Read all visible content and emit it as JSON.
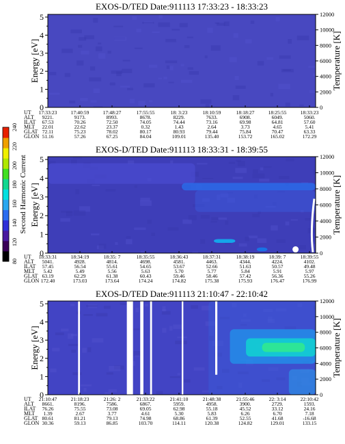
{
  "colorbar": {
    "label": "Second Harmonic Current",
    "ticks": [
      "80",
      "120",
      "140",
      "160",
      "180",
      "200",
      "220",
      "240"
    ],
    "colors": [
      "#000000",
      "#3a0058",
      "#4a1aa0",
      "#3030d8",
      "#2a6cf0",
      "#28a8f0",
      "#00e0e0",
      "#10d890",
      "#40e020",
      "#b0e800",
      "#f0f000",
      "#f0a000",
      "#e82000"
    ]
  },
  "chart_data": [
    {
      "type": "heatmap",
      "title": "EXOS-D/TED  Date:911113  17:33:23 - 18:33:23",
      "ylabel": "Energy [eV]",
      "y2label": "Temperature [K]",
      "ylim": [
        0,
        5.15
      ],
      "y_ticks": [
        0,
        1,
        2,
        3,
        4,
        5
      ],
      "y2lim": [
        0,
        12000
      ],
      "y2_ticks": [
        0,
        2000,
        4000,
        6000,
        8000,
        10000,
        12000
      ],
      "background": "#4848c0",
      "features": [],
      "gaps": [],
      "ephemeris": {
        "labels": [
          "UT",
          "ALT",
          "ILAT",
          "MLT",
          "GLAT",
          "GLON"
        ],
        "columns": [
          [
            "17:33:23",
            "9221.",
            "67.53",
            "22.01",
            "72.11",
            "51.16"
          ],
          [
            "17:40:59",
            "9173.",
            "70.26",
            "22.62",
            "75.23",
            "57.26"
          ],
          [
            "17:48:27",
            "8993.",
            "72.50",
            "23.37",
            "78.02",
            "67.25"
          ],
          [
            "17:55:55",
            "8678.",
            "74.05",
            "0.32",
            "80.17",
            "84.04"
          ],
          [
            "18: 3:23",
            "8229.",
            "74.44",
            "1.43",
            "80.93",
            "109.01"
          ],
          [
            "18:10:59",
            "7633.",
            "73.16",
            "2.64",
            "79.44",
            "135.40"
          ],
          [
            "18:18:27",
            "6908.",
            "69.98",
            "3.73",
            "75.84",
            "153.72"
          ],
          [
            "18:25:55",
            "6049.",
            "64.81",
            "4.65",
            "70.47",
            "165.02"
          ],
          [
            "18:33:23",
            "5060.",
            "57.60",
            "5.41",
            "63.33",
            "172.29"
          ]
        ]
      }
    },
    {
      "type": "heatmap",
      "title": "EXOS-D/TED  Date:911113  18:33:31 - 18:39:55",
      "ylabel": "Energy [eV]",
      "y2label": "Temperature [K]",
      "ylim": [
        0,
        5.15
      ],
      "y_ticks": [
        0,
        1,
        2,
        3,
        4,
        5
      ],
      "y2lim": [
        0,
        12000
      ],
      "y2_ticks": [
        0,
        2000,
        4000,
        6000,
        8000,
        10000,
        12000
      ],
      "background": "#3e3eb8",
      "features": [
        {
          "x0": 0.0,
          "x1": 0.55,
          "y0": 3.7,
          "y1": 4.8,
          "color": "#4a4cd0",
          "opacity": 0.7
        },
        {
          "x0": 0.5,
          "x1": 1.0,
          "y0": 3.35,
          "y1": 3.75,
          "color": "#2a6ae8",
          "opacity": 0.85
        },
        {
          "x0": 0.55,
          "x1": 1.0,
          "y0": 2.2,
          "y1": 3.35,
          "color": "#3a58d8",
          "opacity": 0.55
        },
        {
          "x0": 0.62,
          "x1": 0.7,
          "y0": 0.55,
          "y1": 0.75,
          "color": "#10b0f0",
          "opacity": 0.9
        },
        {
          "x0": 0.78,
          "x1": 0.82,
          "y0": 0.1,
          "y1": 0.3,
          "color": "#1080f0",
          "opacity": 0.8
        }
      ],
      "gaps": [],
      "ephemeris": {
        "labels": [
          "UT",
          "ALT",
          "ILAT",
          "MLT",
          "GLAT",
          "GLON"
        ],
        "columns": [
          [
            "18:33:31",
            "5041.",
            "57.45",
            "5.42",
            "63.19",
            "172.40"
          ],
          [
            "18:34:19",
            "4928.",
            "56.54",
            "5.49",
            "62.29",
            "173.03"
          ],
          [
            "18:35: 7",
            "4814.",
            "55.61",
            "5.56",
            "61.38",
            "173.64"
          ],
          [
            "18:35:55",
            "4698.",
            "54.65",
            "5.63",
            "60.43",
            "174.24"
          ],
          [
            "18:36:43",
            "4581.",
            "53.67",
            "5.70",
            "59.46",
            "174.82"
          ],
          [
            "18:37:31",
            "4463.",
            "52.66",
            "5.77",
            "58.46",
            "175.38"
          ],
          [
            "18:38:19",
            "4344.",
            "51.63",
            "5.84",
            "57.42",
            "175.93"
          ],
          [
            "18:39: 7",
            "4224.",
            "50.57",
            "5.91",
            "56.36",
            "176.47"
          ],
          [
            "18:39:55",
            "4102.",
            "49.48",
            "5.97",
            "55.26",
            "176.99"
          ]
        ]
      }
    },
    {
      "type": "heatmap",
      "title": "EXOS-D/TED  Date:911113  21:10:47 - 22:10:42",
      "ylabel": "Energy [eV]",
      "y2label": "Temperature [K]",
      "ylim": [
        0,
        5.15
      ],
      "y_ticks": [
        0,
        1,
        2,
        3,
        4,
        5
      ],
      "y2lim": [
        0,
        12000
      ],
      "y2_ticks": [
        0,
        2000,
        4000,
        6000,
        8000,
        10000,
        12000
      ],
      "background": "#4244c4",
      "features": [
        {
          "x0": 0.6,
          "x1": 1.0,
          "y0": 0.0,
          "y1": 5.15,
          "color": "#3a5ad8",
          "opacity": 0.5
        },
        {
          "x0": 0.68,
          "x1": 1.0,
          "y0": 1.7,
          "y1": 3.6,
          "color": "#1ca0f0",
          "opacity": 0.65
        },
        {
          "x0": 0.74,
          "x1": 1.0,
          "y0": 2.1,
          "y1": 3.1,
          "color": "#10d8d0",
          "opacity": 0.8
        },
        {
          "x0": 0.8,
          "x1": 0.96,
          "y0": 2.35,
          "y1": 2.85,
          "color": "#30e890",
          "opacity": 0.9
        },
        {
          "x0": 0.9,
          "x1": 1.0,
          "y0": 0.0,
          "y1": 1.4,
          "color": "#2c9ae8",
          "opacity": 0.6
        }
      ],
      "gaps": [
        {
          "x0": 0.113,
          "x1": 0.12
        },
        {
          "x0": 0.295,
          "x1": 0.318
        },
        {
          "x0": 0.345,
          "x1": 0.357
        },
        {
          "x0": 0.382,
          "x1": 0.389
        },
        {
          "x0": 0.5,
          "x1": 0.506
        },
        {
          "x0": 0.625,
          "x1": 0.633,
          "y0": 1.1
        }
      ],
      "ephemeris": {
        "labels": [
          "UT",
          "ALT",
          "ILAT",
          "MLT",
          "GLAT",
          "GLON"
        ],
        "columns": [
          [
            "21:10:47",
            "8661.",
            "76.26",
            "1.39",
            "80.61",
            "30.36"
          ],
          [
            "21:18:23",
            "8196.",
            "75.55",
            "2.67",
            "81.21",
            "59.13"
          ],
          [
            "21:26: 2",
            "7586.",
            "73.08",
            "3.77",
            "79.13",
            "86.85"
          ],
          [
            "21:33:22",
            "6867.",
            "69.05",
            "4.61",
            "74.98",
            "103.70"
          ],
          [
            "21:41:10",
            "5959.",
            "62.98",
            "5.30",
            "68.86",
            "114.11"
          ],
          [
            "21:48:38",
            "4958.",
            "55.18",
            "5.83",
            "61.39",
            "120.38"
          ],
          [
            "21:55:46",
            "3900.",
            "45.52",
            "6.26",
            "52.55",
            "124.82"
          ],
          [
            "22: 3:14",
            "2729.",
            "33.12",
            "6.70",
            "41.68",
            "129.01"
          ],
          [
            "22:10:42",
            "1593.",
            "24.16",
            "7.18",
            "-16.68",
            "133.15"
          ]
        ]
      }
    }
  ]
}
